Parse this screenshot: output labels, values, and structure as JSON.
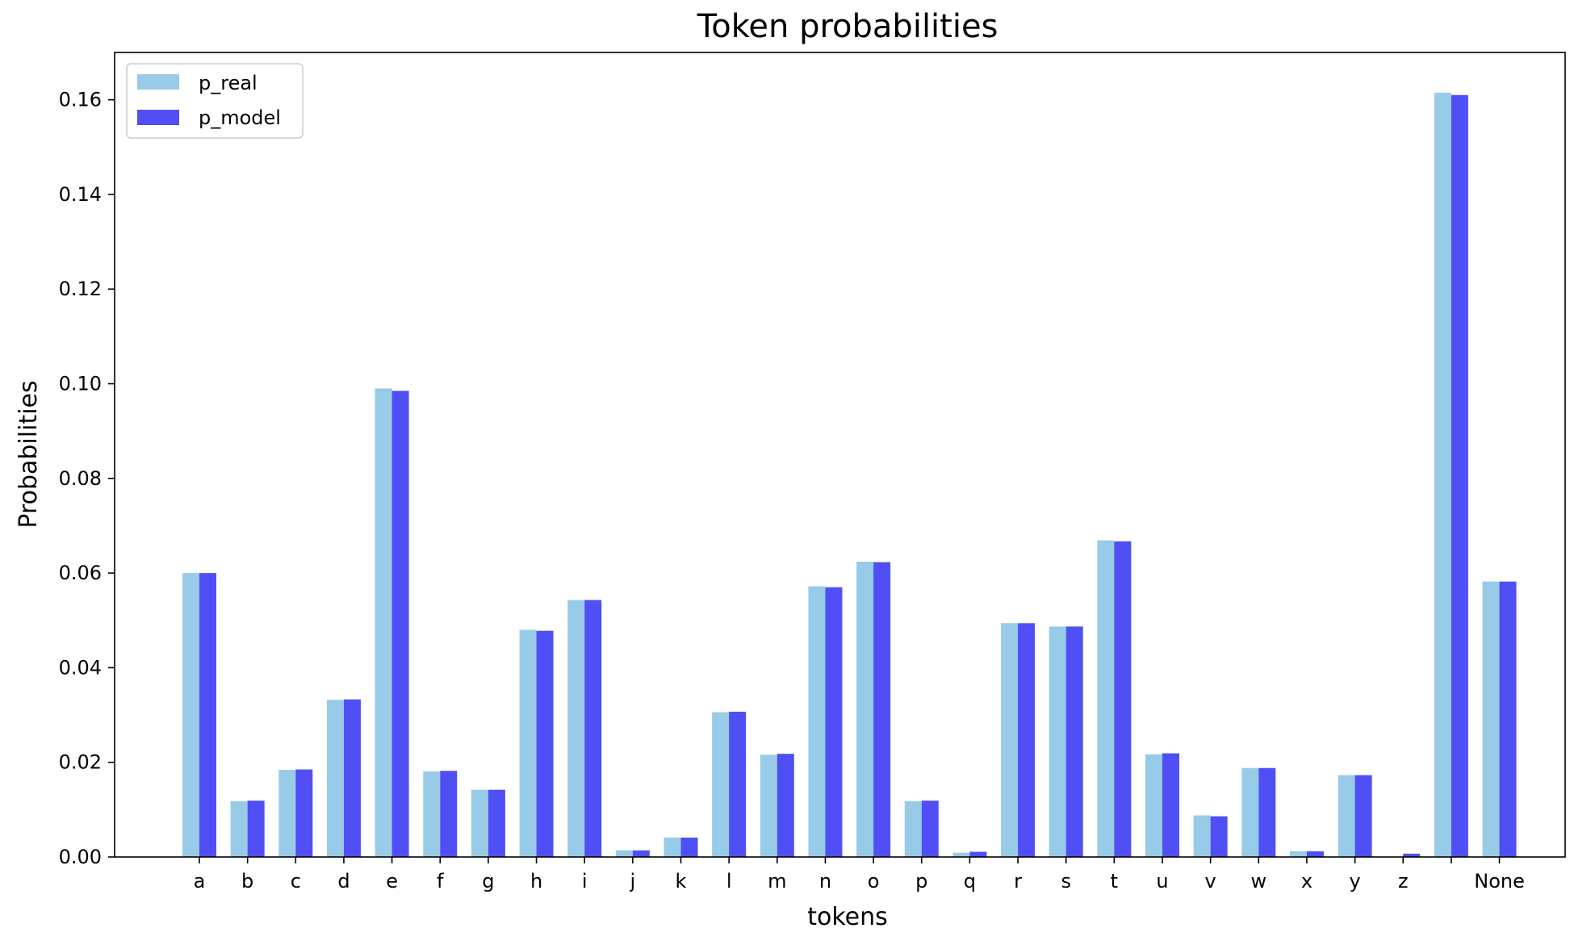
{
  "chart_data": {
    "type": "bar",
    "title": "Token probabilities",
    "xlabel": "tokens",
    "ylabel": "Probabilities",
    "ylim": [
      0,
      0.17
    ],
    "yticks": [
      "0.00",
      "0.02",
      "0.04",
      "0.06",
      "0.08",
      "0.10",
      "0.12",
      "0.14",
      "0.16"
    ],
    "categories": [
      "a",
      "b",
      "c",
      "d",
      "e",
      "f",
      "g",
      "h",
      "i",
      "j",
      "k",
      "l",
      "m",
      "n",
      "o",
      "p",
      "q",
      "r",
      "s",
      "t",
      "u",
      "v",
      "w",
      "x",
      "y",
      "z",
      " ",
      "None"
    ],
    "legend_position": "top-left",
    "grid": false,
    "series": [
      {
        "name": "p_real",
        "color": "#97cbe8",
        "values": [
          0.06,
          0.0118,
          0.0184,
          0.0332,
          0.099,
          0.0181,
          0.0142,
          0.048,
          0.0543,
          0.0014,
          0.0041,
          0.0306,
          0.0216,
          0.0572,
          0.0624,
          0.0118,
          0.0009,
          0.0494,
          0.0487,
          0.0669,
          0.0217,
          0.0088,
          0.0188,
          0.0012,
          0.0173,
          0.0001,
          0.1615,
          0.0582
        ]
      },
      {
        "name": "p_model",
        "color": "#4f4ff5",
        "values": [
          0.06,
          0.0119,
          0.0185,
          0.0333,
          0.0985,
          0.0182,
          0.0142,
          0.0478,
          0.0543,
          0.0014,
          0.0041,
          0.0307,
          0.0218,
          0.057,
          0.0623,
          0.0119,
          0.0011,
          0.0494,
          0.0487,
          0.0667,
          0.0219,
          0.0086,
          0.0188,
          0.0012,
          0.0173,
          0.0007,
          0.161,
          0.0582
        ]
      }
    ]
  }
}
